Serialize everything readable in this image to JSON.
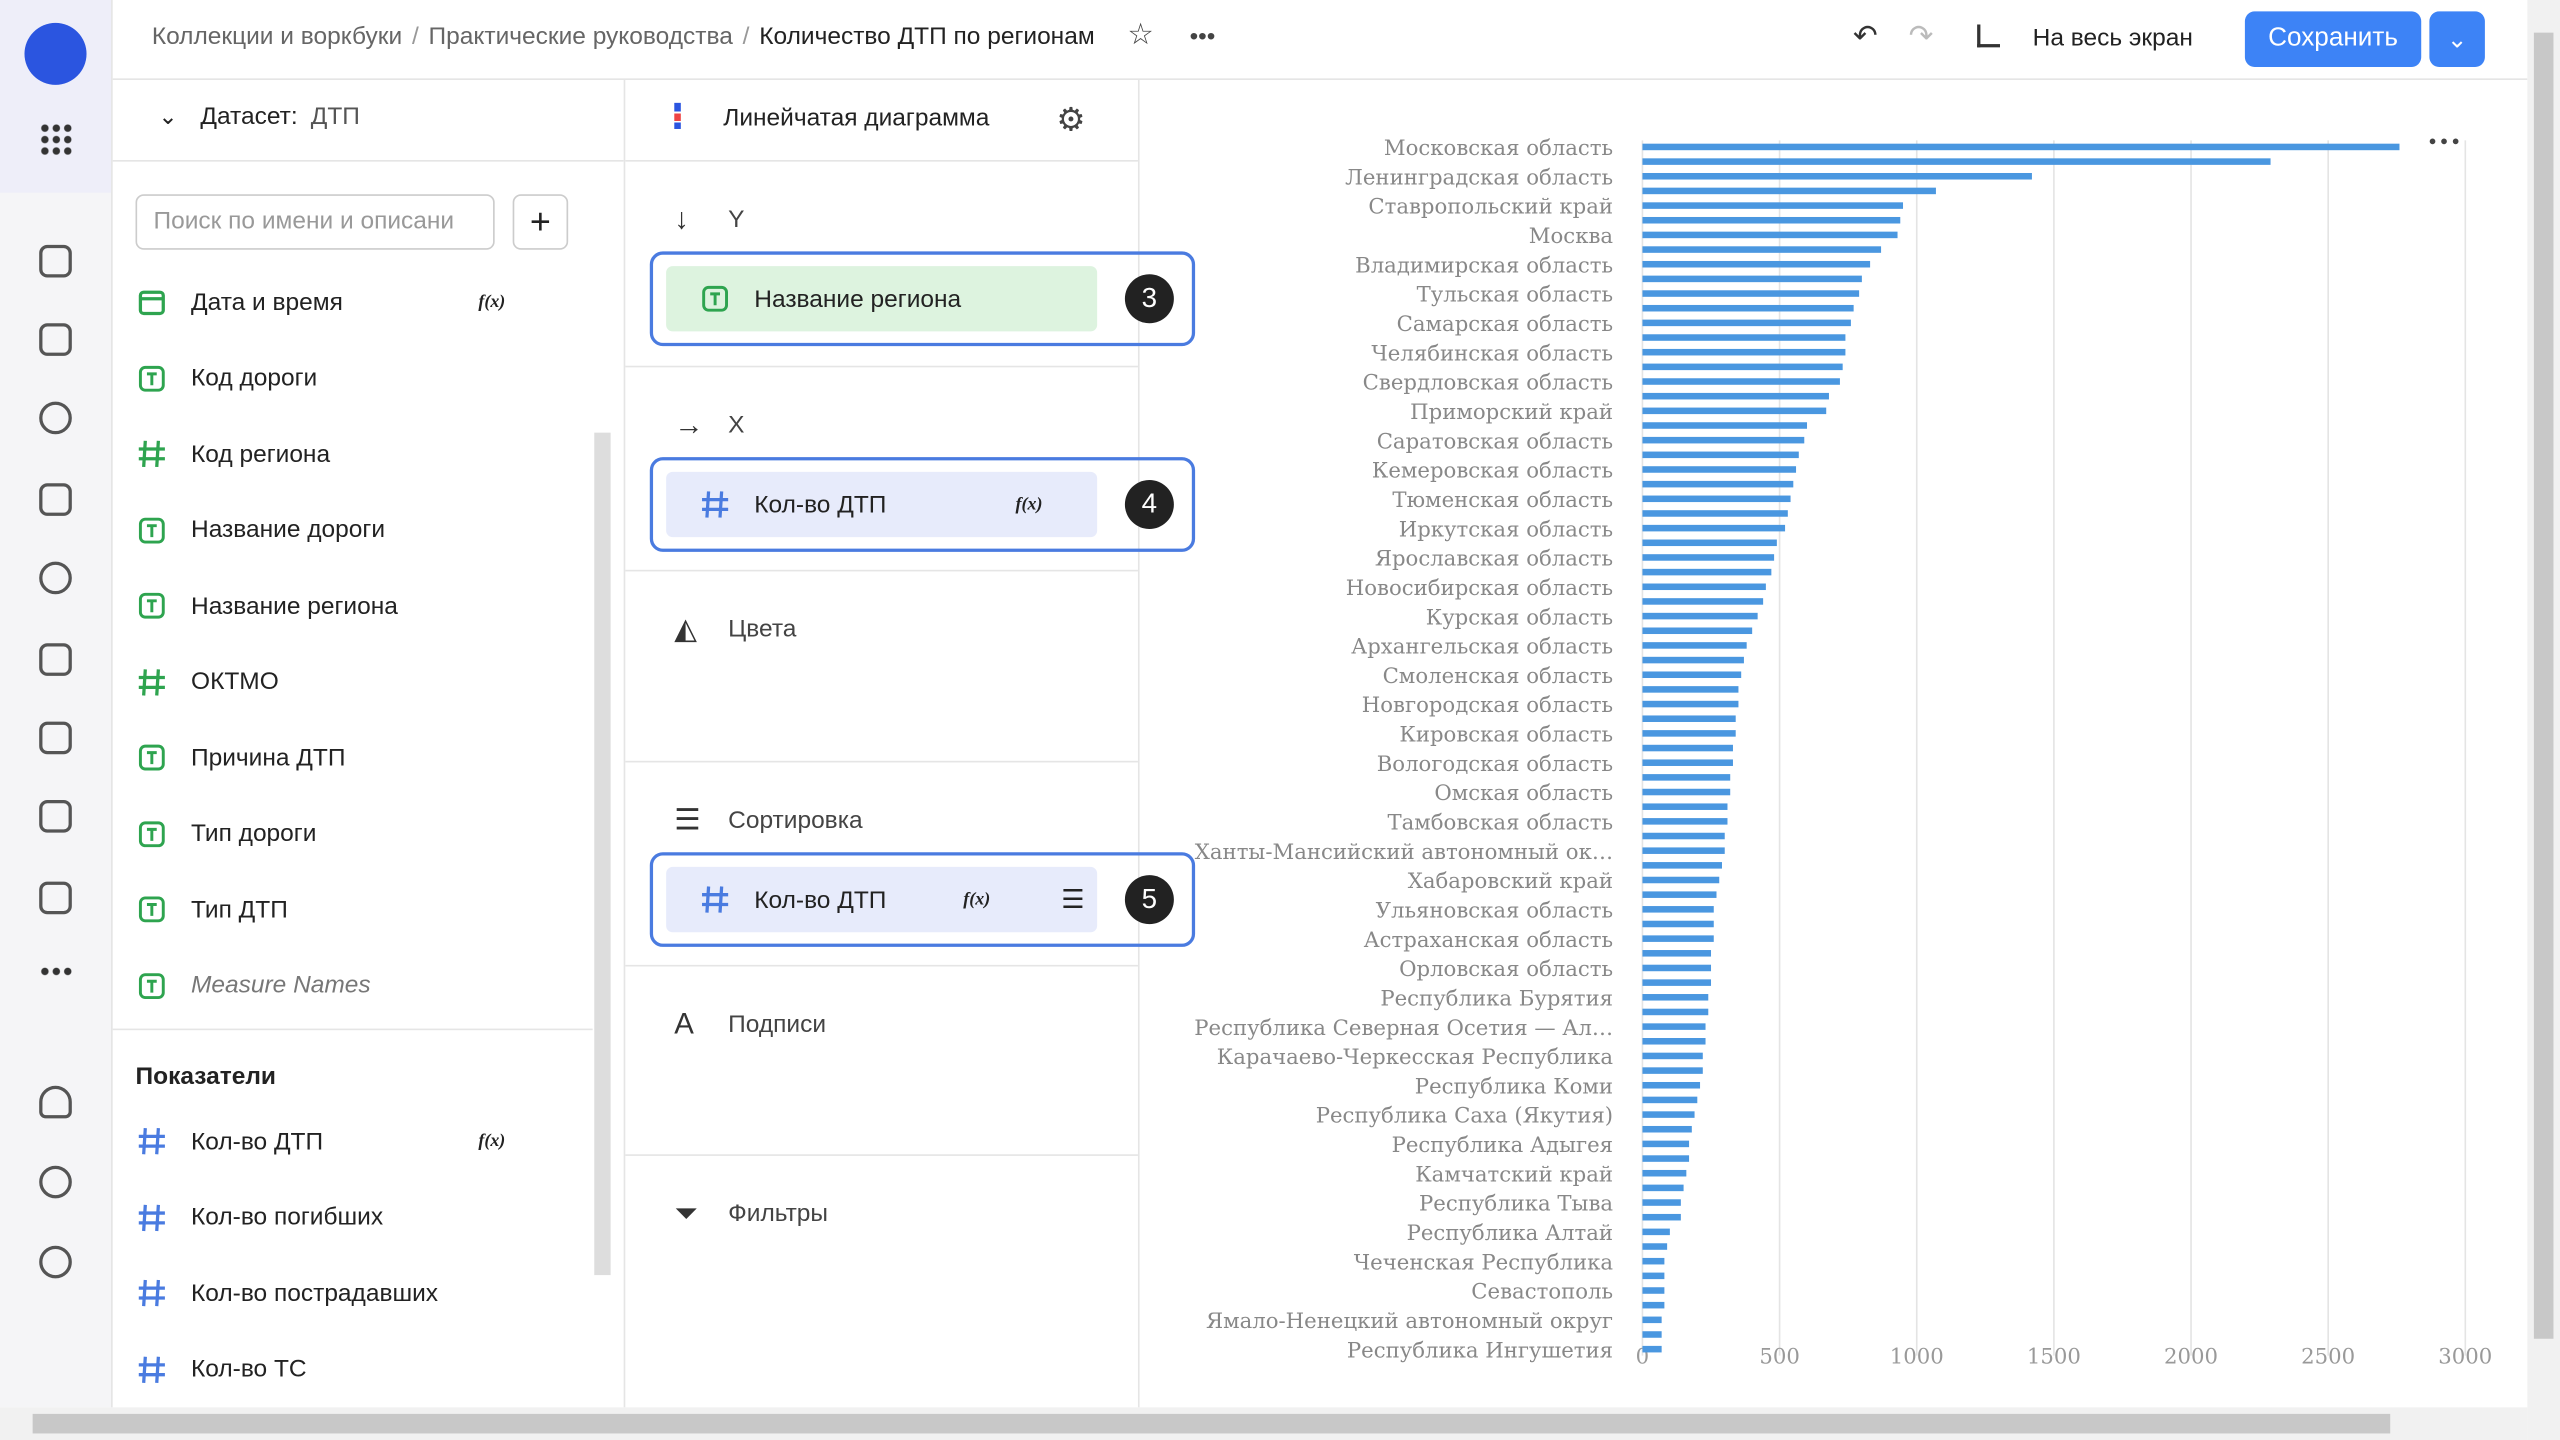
{
  "header": {
    "breadcrumbs": [
      "Коллекции и воркбуки",
      "Практические руководства"
    ],
    "title": "Количество ДТП по регионам",
    "fullscreen": "На весь экран",
    "save": "Сохранить"
  },
  "dataset": {
    "label": "Датасет:",
    "name": "ДТП",
    "search_placeholder": "Поиск по имени и описани",
    "dimensions": [
      {
        "name": "Дата и время",
        "kind": "date",
        "formula": "f(x)"
      },
      {
        "name": "Код дороги",
        "kind": "text"
      },
      {
        "name": "Код региона",
        "kind": "number"
      },
      {
        "name": "Название дороги",
        "kind": "text"
      },
      {
        "name": "Название региона",
        "kind": "text"
      },
      {
        "name": "ОКТМО",
        "kind": "number"
      },
      {
        "name": "Причина ДТП",
        "kind": "text"
      },
      {
        "name": "Тип дороги",
        "kind": "text"
      },
      {
        "name": "Тип ДТП",
        "kind": "text"
      },
      {
        "name": "Measure Names",
        "kind": "text",
        "italic": true
      }
    ],
    "measures_title": "Показатели",
    "measures": [
      {
        "name": "Кол-во ДТП",
        "kind": "number",
        "formula": "f(x)"
      },
      {
        "name": "Кол-во погибших",
        "kind": "number"
      },
      {
        "name": "Кол-во пострадавших",
        "kind": "number"
      },
      {
        "name": "Кол-во ТС",
        "kind": "number"
      }
    ]
  },
  "wizard": {
    "chart_type": "Линейчатая диаграмма",
    "sections": [
      {
        "title": "Y",
        "icon": "down",
        "field": {
          "name": "Название региона",
          "kind": "text",
          "badge": 3
        }
      },
      {
        "title": "X",
        "icon": "right",
        "field": {
          "name": "Кол-во ДТП",
          "kind": "number",
          "formula": "f(x)",
          "badge": 4
        }
      },
      {
        "title": "Цвета",
        "icon": "paint"
      },
      {
        "title": "Сортировка",
        "icon": "sort",
        "field": {
          "name": "Кол-во ДТП",
          "kind": "number",
          "formula": "f(x)",
          "sort": true,
          "badge": 5
        }
      },
      {
        "title": "Подписи",
        "icon": "a"
      },
      {
        "title": "Фильтры",
        "icon": "filter"
      }
    ]
  },
  "chart_data": {
    "type": "bar",
    "orientation": "horizontal",
    "color": "#4a97e0",
    "grid": true,
    "categories": [
      "Московская область",
      null,
      "Ленинградская область",
      null,
      "Ставропольский край",
      null,
      "Москва",
      null,
      "Владимирская область",
      null,
      "Тульская область",
      null,
      "Самарская область",
      null,
      "Челябинская область",
      null,
      "Свердловская область",
      null,
      "Приморский край",
      null,
      "Саратовская область",
      null,
      "Кемеровская область",
      null,
      "Тюменская область",
      null,
      "Иркутская область",
      null,
      "Ярославская область",
      null,
      "Новосибирская область",
      null,
      "Курская область",
      null,
      "Архангельская область",
      null,
      "Смоленская область",
      null,
      "Новгородская область",
      null,
      "Кировская область",
      null,
      "Вологодская область",
      null,
      "Омская область",
      null,
      "Тамбовская область",
      null,
      "Ханты-Мансийский автономный ок…",
      null,
      "Хабаровский край",
      null,
      "Ульяновская область",
      null,
      "Астраханская область",
      null,
      "Орловская область",
      null,
      "Республика Бурятия",
      null,
      "Республика Северная Осетия — Ал…",
      null,
      "Карачаево-Черкесская Республика",
      null,
      "Республика Коми",
      null,
      "Республика Саха (Якутия)",
      null,
      "Республика Адыгея",
      null,
      "Камчатский край",
      null,
      "Республика Тыва",
      null,
      "Республика Алтай",
      null,
      "Чеченская Республика",
      null,
      "Севастополь",
      null,
      "Ямало-Ненецкий автономный округ",
      null,
      "Республика Ингушетия"
    ],
    "values": [
      2760,
      2290,
      1420,
      1070,
      950,
      940,
      930,
      870,
      830,
      800,
      790,
      770,
      760,
      740,
      740,
      730,
      720,
      680,
      670,
      600,
      590,
      570,
      560,
      550,
      540,
      530,
      520,
      490,
      480,
      470,
      450,
      440,
      420,
      400,
      380,
      370,
      360,
      350,
      350,
      340,
      340,
      330,
      330,
      320,
      320,
      310,
      310,
      300,
      300,
      290,
      280,
      270,
      260,
      260,
      260,
      250,
      250,
      250,
      240,
      240,
      230,
      230,
      220,
      220,
      210,
      200,
      190,
      180,
      170,
      170,
      160,
      150,
      140,
      140,
      100,
      90,
      80,
      80,
      80,
      80,
      70,
      70,
      70
    ],
    "xlim": [
      0,
      3000
    ],
    "xticks": [
      0,
      500,
      1000,
      1500,
      2000,
      2500,
      3000
    ]
  }
}
